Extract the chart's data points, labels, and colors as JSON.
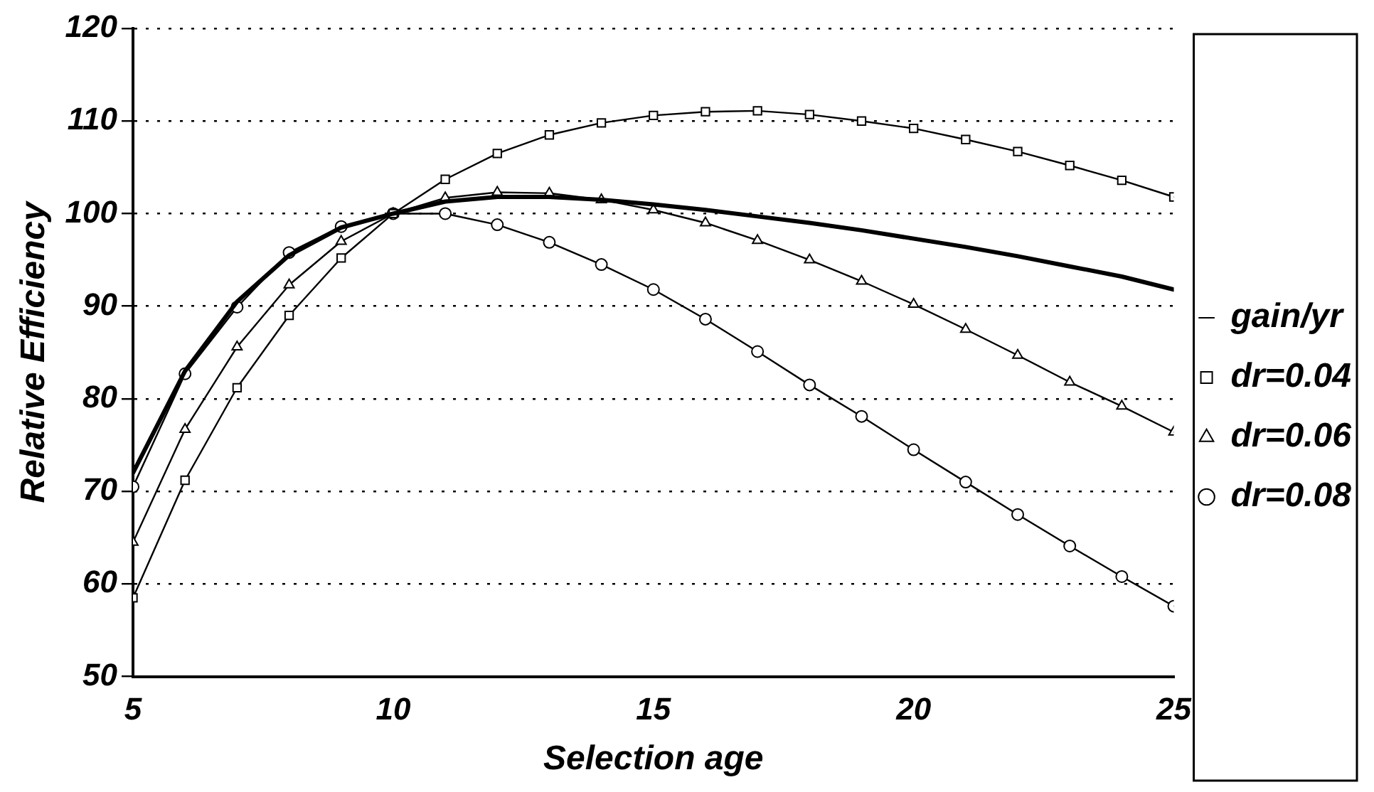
{
  "chart_data": {
    "type": "line",
    "xlabel": "Selection age",
    "ylabel": "Relative Efficiency",
    "x": [
      5,
      6,
      7,
      8,
      9,
      10,
      11,
      12,
      13,
      14,
      15,
      16,
      17,
      18,
      19,
      20,
      21,
      22,
      23,
      24,
      25
    ],
    "xlim": [
      5,
      25
    ],
    "xticks": [
      5,
      10,
      15,
      20,
      25
    ],
    "ylim": [
      50,
      120
    ],
    "yticks": [
      50,
      60,
      70,
      80,
      90,
      100,
      110,
      120
    ],
    "grid": "y",
    "legend": "right",
    "line_style": "solid",
    "series": [
      {
        "name": "gain/yr",
        "color": "#000000",
        "marker": "none",
        "values": [
          72,
          83,
          90.5,
          95.5,
          98.5,
          100,
          101.3,
          101.8,
          101.8,
          101.5,
          101,
          100.4,
          99.7,
          99,
          98.2,
          97.3,
          96.4,
          95.4,
          94.3,
          93.2,
          91.8
        ]
      },
      {
        "name": "dr=0.04",
        "color": "#000000",
        "marker": "square",
        "values": [
          58.5,
          71.2,
          81.2,
          89,
          95.2,
          100,
          103.7,
          106.5,
          108.5,
          109.8,
          110.6,
          111,
          111.1,
          110.7,
          110,
          109.2,
          108,
          106.7,
          105.2,
          103.6,
          101.8
        ]
      },
      {
        "name": "dr=0.06",
        "color": "#000000",
        "marker": "triangle",
        "values": [
          64.5,
          76.7,
          85.6,
          92.3,
          97,
          100,
          101.7,
          102.3,
          102.2,
          101.5,
          100.4,
          99,
          97.1,
          95,
          92.7,
          90.2,
          87.5,
          84.7,
          81.8,
          79.2,
          76.4
        ]
      },
      {
        "name": "dr=0.08",
        "color": "#000000",
        "marker": "circle",
        "values": [
          70.5,
          82.7,
          89.9,
          95.8,
          98.6,
          100,
          100,
          98.8,
          96.9,
          94.5,
          91.8,
          88.6,
          85.1,
          81.5,
          78.1,
          74.5,
          71,
          67.5,
          64.1,
          60.8,
          57.6
        ]
      }
    ]
  }
}
